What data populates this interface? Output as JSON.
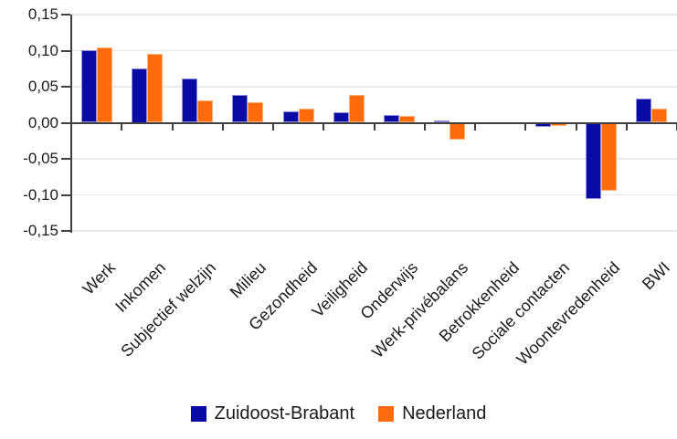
{
  "chart_data": {
    "type": "bar",
    "title": "",
    "xlabel": "",
    "ylabel": "",
    "categories": [
      "Werk",
      "Inkomen",
      "Subjectief welzijn",
      "Milieu",
      "Gezondheid",
      "Veiligheid",
      "Onderwijs",
      "Werk-privébalans",
      "Betrokkenheid",
      "Sociale contacten",
      "Woontevredenheid",
      "BWI"
    ],
    "series": [
      {
        "name": "Zuidoost-Brabant",
        "color": "#0a0aa4",
        "values": [
          0.101,
          0.075,
          0.061,
          0.038,
          0.016,
          0.015,
          0.011,
          0.003,
          0.001,
          -0.006,
          -0.106,
          0.033
        ]
      },
      {
        "name": "Nederland",
        "color": "#ff6a0a",
        "values": [
          0.104,
          0.096,
          0.031,
          0.028,
          0.019,
          0.038,
          0.009,
          -0.023,
          0.001,
          -0.005,
          -0.094,
          0.019
        ]
      }
    ],
    "ylim": [
      -0.15,
      0.15
    ],
    "ytick_step": 0.05,
    "ytick_values": [
      0.15,
      0.1,
      0.05,
      0.0,
      -0.05,
      -0.1,
      -0.15
    ],
    "ytick_labels": [
      "0,15",
      "0,10",
      "0,05",
      "0,00",
      "-0,05",
      "-0,10",
      "-0,15"
    ],
    "grid": true,
    "legend_position": "bottom",
    "colors": {
      "series_blue": "#0a0aa4",
      "series_orange": "#ff6a0a",
      "gridline": "#e9e9e9",
      "axis": "#404040",
      "text": "#1a1a1a"
    }
  },
  "legend": {
    "items": [
      {
        "label": "Zuidoost-Brabant",
        "color": "#0a0aa4"
      },
      {
        "label": "Nederland",
        "color": "#ff6a0a"
      }
    ]
  }
}
